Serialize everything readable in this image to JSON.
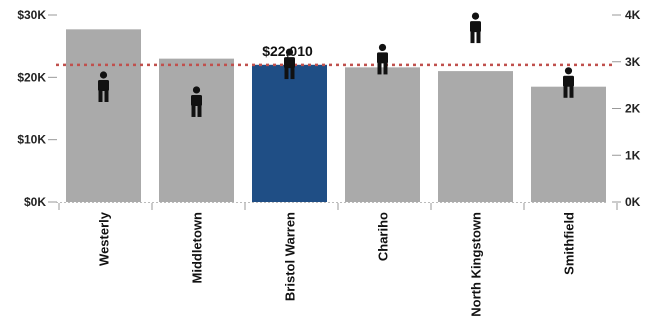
{
  "chart_data": {
    "type": "bar",
    "categories": [
      "Westerly",
      "Middletown",
      "Bristol Warren",
      "Chariho",
      "North Kingstown",
      "Smithfield"
    ],
    "values": [
      27700,
      23000,
      22010,
      21600,
      21000,
      18500
    ],
    "highlight_index": 2,
    "data_label": "$22,010",
    "left_axis": {
      "ylim": [
        0,
        30000
      ],
      "ticks": [
        0,
        10000,
        20000,
        30000
      ],
      "tick_labels": [
        "$0K",
        "$10K",
        "$20K",
        "$30K"
      ]
    },
    "reference_line": {
      "value": 22000,
      "style": "dotted"
    },
    "secondary_series": {
      "marker": "person-icon",
      "values": [
        2460,
        2140,
        2950,
        3050,
        3720,
        2550
      ]
    },
    "right_axis": {
      "ylim": [
        0,
        4000
      ],
      "ticks": [
        0,
        1000,
        2000,
        3000,
        4000
      ],
      "tick_labels": [
        "0K",
        "1K",
        "2K",
        "3K",
        "4K"
      ]
    },
    "colors": {
      "bar": "#aaaaaa",
      "highlight": "#1f4e85",
      "reference_line": "#c0504d",
      "marker": "#111111",
      "axis": "#999999"
    }
  }
}
